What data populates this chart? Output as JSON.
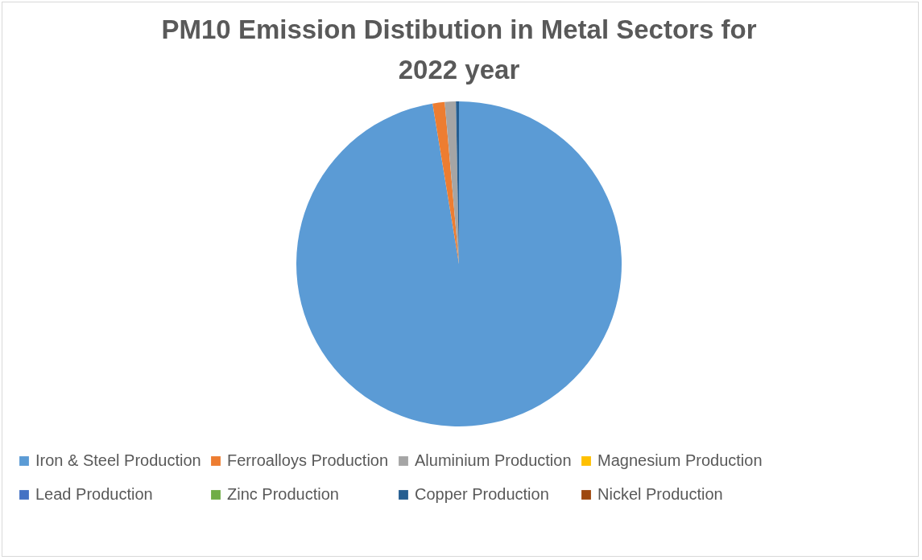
{
  "chart_data": {
    "type": "pie",
    "title": "PM10 Emission Distibution in Metal Sectors for 2022 year",
    "categories": [
      "Iron & Steel Production",
      "Ferroalloys Production",
      "Aluminium Production",
      "Magnesium Production",
      "Lead Production",
      "Zinc Production",
      "Copper Production",
      "Nickel Production"
    ],
    "values": [
      97.4,
      1.2,
      1.1,
      0,
      0,
      0,
      0.3,
      0
    ],
    "colors": [
      "#5b9bd5",
      "#ed7d31",
      "#a5a5a5",
      "#ffc000",
      "#4472c4",
      "#70ad47",
      "#255e91",
      "#9e480e"
    ],
    "legend": "bottom"
  }
}
